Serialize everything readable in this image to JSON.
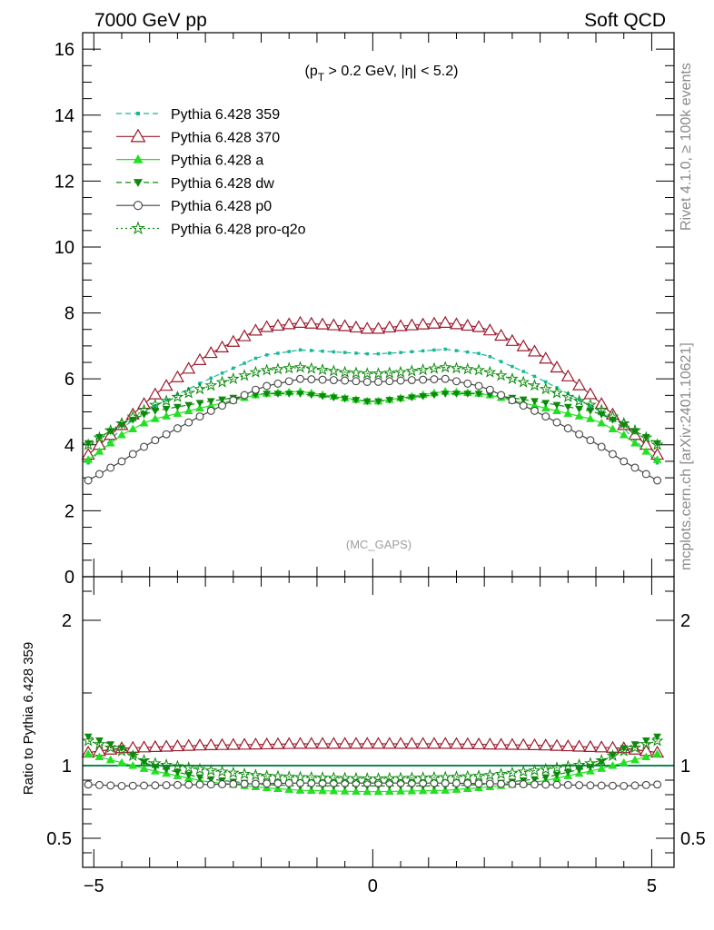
{
  "header": {
    "left": "7000 GeV pp",
    "right": "Soft QCD"
  },
  "side_labels": {
    "rivet": "Rivet 4.1.0, ≥ 100k events",
    "mcplots": "mcplots.cern.ch [arXiv:2401.10621]"
  },
  "chart_data": {
    "type": "line",
    "title": "(pT > 0.2 GeV, |η| < 5.2)",
    "title_parts": {
      "open": "(p",
      "sub": "T",
      "rest": " > 0.2 GeV, |η| < 5.2)"
    },
    "watermark": "(MC_GAPS)",
    "xlabel": "",
    "ylabel": "",
    "xlim": [
      -5.2,
      5.4
    ],
    "ylim": [
      0,
      16.5
    ],
    "x_ticks": [
      -5,
      0,
      5
    ],
    "x_tick_labels": [
      "−5",
      "0",
      "5"
    ],
    "y_ticks": [
      0,
      2,
      4,
      6,
      8,
      10,
      12,
      14,
      16
    ],
    "y_tick_labels": [
      "0",
      "2",
      "4",
      "6",
      "8",
      "10",
      "12",
      "14",
      "16"
    ],
    "series": [
      {
        "name": "Pythia 6.428 359",
        "color": "#17b894",
        "style": "dashed",
        "marker": "square",
        "anchors": [
          [
            -5.1,
            3.45
          ],
          [
            -4.5,
            4.5
          ],
          [
            -4,
            5.1
          ],
          [
            -3,
            5.95
          ],
          [
            -2,
            6.7
          ],
          [
            -1.3,
            6.88
          ],
          [
            -0.5,
            6.8
          ],
          [
            0,
            6.75
          ],
          [
            0.5,
            6.8
          ],
          [
            1.3,
            6.9
          ],
          [
            2,
            6.75
          ],
          [
            3,
            6.0
          ],
          [
            4,
            5.1
          ],
          [
            4.5,
            4.5
          ],
          [
            5.1,
            3.45
          ]
        ]
      },
      {
        "name": "Pythia 6.428 370",
        "color": "#9b1b2d",
        "style": "solid",
        "marker": "triangle-open",
        "anchors": [
          [
            -5.1,
            3.7
          ],
          [
            -4.5,
            4.6
          ],
          [
            -4,
            5.4
          ],
          [
            -3,
            6.7
          ],
          [
            -2,
            7.55
          ],
          [
            -1.3,
            7.7
          ],
          [
            -0.5,
            7.6
          ],
          [
            0,
            7.5
          ],
          [
            0.5,
            7.6
          ],
          [
            1.3,
            7.7
          ],
          [
            2,
            7.55
          ],
          [
            3,
            6.75
          ],
          [
            4,
            5.4
          ],
          [
            4.5,
            4.6
          ],
          [
            5.1,
            3.7
          ]
        ]
      },
      {
        "name": "Pythia 6.428 a",
        "color": "#22e022",
        "style": "solid",
        "marker": "triangle",
        "anchors": [
          [
            -5.1,
            3.55
          ],
          [
            -4.5,
            4.3
          ],
          [
            -4,
            4.75
          ],
          [
            -3,
            5.15
          ],
          [
            -2,
            5.55
          ],
          [
            -1.3,
            5.62
          ],
          [
            -0.5,
            5.42
          ],
          [
            0,
            5.3
          ],
          [
            0.5,
            5.42
          ],
          [
            1.3,
            5.62
          ],
          [
            2,
            5.55
          ],
          [
            3,
            5.15
          ],
          [
            4,
            4.75
          ],
          [
            4.5,
            4.3
          ],
          [
            5.1,
            3.55
          ]
        ]
      },
      {
        "name": "Pythia 6.428 dw",
        "color": "#0c8a0c",
        "style": "dashed",
        "marker": "triangle-down",
        "anchors": [
          [
            -5.1,
            4.05
          ],
          [
            -4.5,
            4.6
          ],
          [
            -4,
            5.0
          ],
          [
            -3,
            5.3
          ],
          [
            -2,
            5.55
          ],
          [
            -1.3,
            5.55
          ],
          [
            -0.5,
            5.4
          ],
          [
            0,
            5.3
          ],
          [
            0.5,
            5.4
          ],
          [
            1.3,
            5.55
          ],
          [
            2,
            5.55
          ],
          [
            3,
            5.3
          ],
          [
            4,
            5.0
          ],
          [
            4.5,
            4.6
          ],
          [
            5.1,
            4.05
          ]
        ]
      },
      {
        "name": "Pythia 6.428 p0",
        "color": "#444444",
        "style": "solid",
        "marker": "circle-open",
        "anchors": [
          [
            -5.1,
            2.92
          ],
          [
            -4.5,
            3.5
          ],
          [
            -4,
            4.05
          ],
          [
            -3,
            4.95
          ],
          [
            -2,
            5.75
          ],
          [
            -1.3,
            6.0
          ],
          [
            -0.5,
            5.95
          ],
          [
            0,
            5.9
          ],
          [
            0.5,
            5.95
          ],
          [
            1.3,
            6.0
          ],
          [
            2,
            5.75
          ],
          [
            3,
            4.95
          ],
          [
            4,
            4.05
          ],
          [
            4.5,
            3.5
          ],
          [
            5.1,
            2.92
          ]
        ]
      },
      {
        "name": "Pythia 6.428 pro-q2o",
        "color": "#0c8a0c",
        "style": "dotted",
        "marker": "star",
        "anchors": [
          [
            -5.1,
            4.0
          ],
          [
            -4.5,
            4.65
          ],
          [
            -4,
            5.15
          ],
          [
            -3,
            5.75
          ],
          [
            -2,
            6.25
          ],
          [
            -1.3,
            6.35
          ],
          [
            -0.5,
            6.2
          ],
          [
            0,
            6.15
          ],
          [
            0.5,
            6.2
          ],
          [
            1.3,
            6.35
          ],
          [
            2,
            6.25
          ],
          [
            3,
            5.75
          ],
          [
            4,
            5.15
          ],
          [
            4.5,
            4.65
          ],
          [
            5.1,
            4.0
          ]
        ]
      }
    ],
    "ratio": {
      "ylabel": "Ratio to Pythia 6.428 359",
      "ylim": [
        0.3,
        2.3
      ],
      "y_ticks": [
        0.5,
        1,
        2
      ],
      "y_tick_labels": [
        "0.5",
        "1",
        "2"
      ],
      "series": [
        {
          "name": "Pythia 6.428 370",
          "anchors": [
            [
              -5.1,
              1.09
            ],
            [
              -4.5,
              1.12
            ],
            [
              -3,
              1.14
            ],
            [
              -1.3,
              1.15
            ],
            [
              0,
              1.15
            ],
            [
              1.3,
              1.15
            ],
            [
              3,
              1.14
            ],
            [
              4.5,
              1.12
            ],
            [
              5.1,
              1.09
            ]
          ]
        },
        {
          "name": "Pythia 6.428 a",
          "anchors": [
            [
              -5.1,
              1.08
            ],
            [
              -4.5,
              1.02
            ],
            [
              -4,
              0.97
            ],
            [
              -3,
              0.89
            ],
            [
              -2,
              0.85
            ],
            [
              -1.3,
              0.83
            ],
            [
              0,
              0.82
            ],
            [
              1.3,
              0.83
            ],
            [
              2,
              0.85
            ],
            [
              3,
              0.89
            ],
            [
              4,
              0.97
            ],
            [
              4.5,
              1.02
            ],
            [
              5.1,
              1.08
            ]
          ]
        },
        {
          "name": "Pythia 6.428 dw",
          "anchors": [
            [
              -5.1,
              1.2
            ],
            [
              -4.5,
              1.12
            ],
            [
              -4,
              1.0
            ],
            [
              -3,
              0.91
            ],
            [
              -2,
              0.87
            ],
            [
              -1.3,
              0.86
            ],
            [
              0,
              0.86
            ],
            [
              1.3,
              0.86
            ],
            [
              2,
              0.87
            ],
            [
              3,
              0.91
            ],
            [
              4,
              1.0
            ],
            [
              4.5,
              1.12
            ],
            [
              5.1,
              1.2
            ]
          ]
        },
        {
          "name": "Pythia 6.428 p0",
          "anchors": [
            [
              -5.1,
              0.87
            ],
            [
              -4.5,
              0.86
            ],
            [
              -3,
              0.87
            ],
            [
              -1.3,
              0.88
            ],
            [
              0,
              0.88
            ],
            [
              1.3,
              0.88
            ],
            [
              3,
              0.87
            ],
            [
              4.5,
              0.86
            ],
            [
              5.1,
              0.87
            ]
          ]
        },
        {
          "name": "Pythia 6.428 pro-q2o",
          "anchors": [
            [
              -5.1,
              1.17
            ],
            [
              -4.5,
              1.1
            ],
            [
              -4,
              1.02
            ],
            [
              -3,
              0.97
            ],
            [
              -2,
              0.93
            ],
            [
              -1.3,
              0.92
            ],
            [
              0,
              0.91
            ],
            [
              1.3,
              0.92
            ],
            [
              2,
              0.93
            ],
            [
              3,
              0.97
            ],
            [
              4,
              1.02
            ],
            [
              4.5,
              1.1
            ],
            [
              5.1,
              1.17
            ]
          ]
        }
      ]
    }
  }
}
